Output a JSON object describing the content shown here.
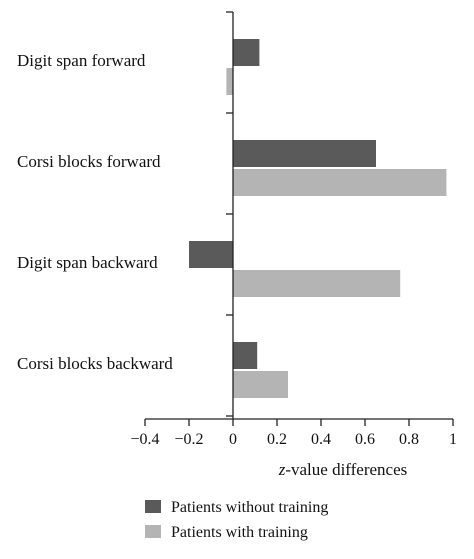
{
  "chart_data": {
    "type": "bar",
    "orientation": "horizontal",
    "categories": [
      "Digit span forward",
      "Corsi blocks forward",
      "Digit span backward",
      "Corsi blocks backward"
    ],
    "series": [
      {
        "name": "Patients without training",
        "color": "#5a5a5a",
        "values": [
          0.12,
          0.65,
          -0.2,
          0.11
        ]
      },
      {
        "name": "Patients with training",
        "color": "#b4b4b4",
        "values": [
          -0.03,
          0.97,
          0.76,
          0.25
        ]
      }
    ],
    "xlabel_prefix": "z",
    "xlabel_suffix": "-value differences",
    "xlim": [
      -0.4,
      1
    ],
    "xticks": [
      -0.4,
      -0.2,
      0,
      0.2,
      0.4,
      0.6,
      0.8,
      1
    ],
    "xtick_labels": [
      "−0.4",
      "−0.2",
      "0",
      "0.2",
      "0.4",
      "0.6",
      "0.8",
      "1"
    ],
    "grid": false,
    "legend_position": "bottom"
  }
}
